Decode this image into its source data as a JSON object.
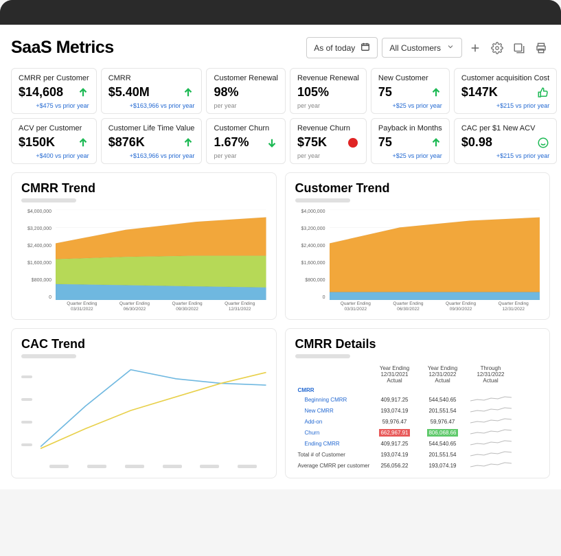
{
  "header": {
    "title": "SaaS Metrics",
    "date_label": "As of today",
    "segment_label": "All Customers"
  },
  "kpis": [
    {
      "label": "CMRR per Customer",
      "value": "$14,608",
      "indicator": "up",
      "sub": "+$475 vs prior year",
      "sub_style": "blue"
    },
    {
      "label": "CMRR",
      "value": "$5.40M",
      "indicator": "up",
      "sub": "+$163,966 vs prior year",
      "sub_style": "blue"
    },
    {
      "label": "Customer Renewal",
      "value": "98%",
      "indicator": "none",
      "sub": "per year",
      "sub_style": "gray"
    },
    {
      "label": "Revenue Renewal",
      "value": "105%",
      "indicator": "none",
      "sub": "per year",
      "sub_style": "gray"
    },
    {
      "label": "New Customer",
      "value": "75",
      "indicator": "up",
      "sub": "+$25 vs prior year",
      "sub_style": "blue"
    },
    {
      "label": "Customer acquisition Cost",
      "value": "$147K",
      "indicator": "thumb",
      "sub": "+$215 vs prior year",
      "sub_style": "blue"
    },
    {
      "label": "ACV per Customer",
      "value": "$150K",
      "indicator": "up",
      "sub": "+$400 vs prior year",
      "sub_style": "blue"
    },
    {
      "label": "Customer Life Time Value",
      "value": "$876K",
      "indicator": "up",
      "sub": "+$163,966 vs prior year",
      "sub_style": "blue"
    },
    {
      "label": "Customer Churn",
      "value": "1.67%",
      "indicator": "down",
      "sub": "per year",
      "sub_style": "gray"
    },
    {
      "label": "Revenue Churn",
      "value": "$75K",
      "indicator": "red",
      "sub": "per year",
      "sub_style": "gray"
    },
    {
      "label": "Payback in Months",
      "value": "75",
      "indicator": "up",
      "sub": "+$25 vs prior year",
      "sub_style": "blue"
    },
    {
      "label": "CAC per $1 New ACV",
      "value": "$0.98",
      "indicator": "smile",
      "sub": "+$215 vs prior year",
      "sub_style": "blue"
    }
  ],
  "cmrr_trend": {
    "title": "CMRR Trend",
    "type": "area-stacked",
    "ylim": [
      0,
      4000000
    ],
    "yticks": [
      "$4,000,000",
      "$3,200,000",
      "$2,400,000",
      "$1,600,000",
      "$800,000",
      "0"
    ],
    "categories": [
      "Quarter Ending\n03/31/2022",
      "Quarter Ending\n06/30/2022",
      "Quarter Ending\n09/30/2022",
      "Quarter Ending\n12/31/2022"
    ],
    "series": [
      {
        "name": "blue",
        "color": "#6fb8e0",
        "values": [
          700000,
          650000,
          600000,
          550000
        ]
      },
      {
        "name": "green",
        "color": "#b6d957",
        "values": [
          1100000,
          1250000,
          1350000,
          1400000
        ]
      },
      {
        "name": "orange",
        "color": "#f2a73b",
        "values": [
          700000,
          1200000,
          1500000,
          1700000
        ]
      }
    ],
    "background": "#ffffff",
    "grid_color": "#eeeeee"
  },
  "customer_trend": {
    "title": "Customer Trend",
    "type": "area-stacked",
    "ylim": [
      0,
      4000000
    ],
    "yticks": [
      "$4,000,000",
      "$3,200,000",
      "$2,400,000",
      "$1,600,000",
      "$800,000",
      "0"
    ],
    "categories": [
      "Quarter Ending\n03/31/2022",
      "Quarter Ending\n06/30/2022",
      "Quarter Ending\n09/30/2022",
      "Quarter Ending\n12/31/2022"
    ],
    "series": [
      {
        "name": "blue",
        "color": "#6fb8e0",
        "values": [
          350000,
          350000,
          350000,
          350000
        ]
      },
      {
        "name": "orange",
        "color": "#f2a73b",
        "values": [
          2150000,
          2850000,
          3150000,
          3300000
        ]
      }
    ],
    "background": "#ffffff",
    "grid_color": "#eeeeee"
  },
  "cac_trend": {
    "title": "CAC Trend",
    "type": "line",
    "series": [
      {
        "name": "a",
        "color": "#6fb8e0",
        "values": [
          10,
          55,
          95,
          85,
          80,
          78
        ],
        "width": 1.5
      },
      {
        "name": "b",
        "color": "#e8d04a",
        "values": [
          8,
          30,
          50,
          65,
          80,
          92
        ],
        "width": 1.5
      }
    ],
    "xcount": 6,
    "yrange": [
      0,
      100
    ]
  },
  "cmrr_details": {
    "title": "CMRR Details",
    "columns": [
      "",
      "Year Ending\n12/31/2021\nActual",
      "Year Ending\n12/31/2022\nActual",
      "Through\n12/31/2022\nActual"
    ],
    "rows": [
      {
        "label": "CMRR",
        "style": "h",
        "cells": [
          "",
          "",
          ""
        ]
      },
      {
        "label": "Beginning CMRR",
        "style": "sub",
        "cells": [
          "409,917.25",
          "544,540.65",
          "spark"
        ]
      },
      {
        "label": "New CMRR",
        "style": "sub",
        "cells": [
          "193,074.19",
          "201,551.54",
          "spark"
        ]
      },
      {
        "label": "Add-on",
        "style": "sub",
        "cells": [
          "59,976.47",
          "59,976.47",
          "spark"
        ]
      },
      {
        "label": "Churn",
        "style": "sub",
        "cells": [
          {
            "text": "662,967.91",
            "bg": "red"
          },
          {
            "text": "806,068.66",
            "bg": "green"
          },
          "spark"
        ]
      },
      {
        "label": "Ending CMRR",
        "style": "sub",
        "cells": [
          "409,917.25",
          "544,540.65",
          "spark"
        ]
      },
      {
        "label": "Total # of Customer",
        "style": "gray",
        "cells": [
          "193,074.19",
          "201,551.54",
          "spark"
        ]
      },
      {
        "label": "Average CMRR per customer",
        "style": "gray",
        "cells": [
          "256,056.22",
          "193,074.19",
          "spark"
        ]
      }
    ]
  },
  "colors": {
    "green": "#1db954",
    "red": "#e02424",
    "blue_link": "#2268d1"
  }
}
